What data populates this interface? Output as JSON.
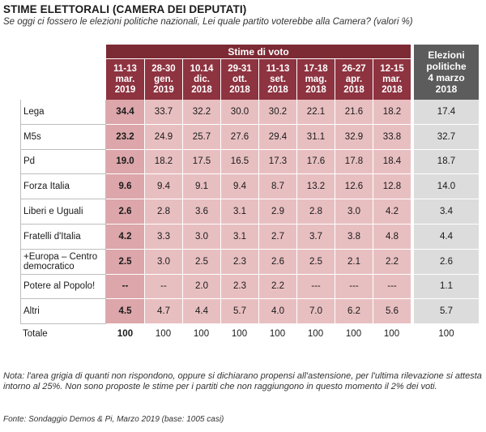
{
  "title": "STIME ELETTORALI (CAMERA DEI DEPUTATI)",
  "subtitle": "Se oggi ci fossero le elezioni politiche nazionali, Lei quale partito voterebbe alla Camera? (valori %)",
  "note": "Nota: l'area grigia di quanti non rispondono, oppure si dichiarano propensi all'astensione, per l'ultima rilevazione si attesta intorno al 25%. Non sono proposte le stime per i partiti che non raggiungono in questo momento il 2% dei voti.",
  "source": "Fonte: Sondaggio Demos & Pi, Marzo 2019 (base: 1005 casi)",
  "colors": {
    "header_red": "#8e3340",
    "cell_pink": "#e8bfc1",
    "latest_pink": "#dca6aa",
    "election_gray": "#dcdcdc",
    "header_gray": "#5c5c5c"
  },
  "chart_data": {
    "type": "table",
    "group_header": "Stime di voto",
    "election_header": [
      "Elezioni",
      "politiche",
      "4 marzo",
      "2018"
    ],
    "columns": [
      [
        "11-13",
        "mar.",
        "2019"
      ],
      [
        "28-30",
        "gen.",
        "2019"
      ],
      [
        "10.14",
        "dic.",
        "2018"
      ],
      [
        "29-31",
        "ott.",
        "2018"
      ],
      [
        "11-13",
        "set.",
        "2018"
      ],
      [
        "17-18",
        "mag.",
        "2018"
      ],
      [
        "26-27",
        "apr.",
        "2018"
      ],
      [
        "12-15",
        "mar.",
        "2018"
      ]
    ],
    "rows": [
      {
        "party": "Lega",
        "values": [
          "34.4",
          "33.7",
          "32.2",
          "30.0",
          "30.2",
          "22.1",
          "21.6",
          "18.2"
        ],
        "election": "17.4"
      },
      {
        "party": "M5s",
        "values": [
          "23.2",
          "24.9",
          "25.7",
          "27.6",
          "29.4",
          "31.1",
          "32.9",
          "33.8"
        ],
        "election": "32.7"
      },
      {
        "party": "Pd",
        "values": [
          "19.0",
          "18.2",
          "17.5",
          "16.5",
          "17.3",
          "17.6",
          "17.8",
          "18.4"
        ],
        "election": "18.7"
      },
      {
        "party": "Forza Italia",
        "values": [
          "9.6",
          "9.4",
          "9.1",
          "9.4",
          "8.7",
          "13.2",
          "12.6",
          "12.8"
        ],
        "election": "14.0"
      },
      {
        "party": "Liberi e Uguali",
        "values": [
          "2.6",
          "2.8",
          "3.6",
          "3.1",
          "2.9",
          "2.8",
          "3.0",
          "4.2"
        ],
        "election": "3.4"
      },
      {
        "party": "Fratelli d'Italia",
        "values": [
          "4.2",
          "3.3",
          "3.0",
          "3.1",
          "2.7",
          "3.7",
          "3.8",
          "4.8"
        ],
        "election": "4.4"
      },
      {
        "party": "+Europa – Centro democratico",
        "values": [
          "2.5",
          "3.0",
          "2.5",
          "2.3",
          "2.6",
          "2.5",
          "2.1",
          "2.2"
        ],
        "election": "2.6"
      },
      {
        "party": "Potere al Popolo!",
        "values": [
          "--",
          "--",
          "2.0",
          "2.3",
          "2.2",
          "---",
          "---",
          "---"
        ],
        "election": "1.1"
      },
      {
        "party": "Altri",
        "values": [
          "4.5",
          "4.7",
          "4.4",
          "5.7",
          "4.0",
          "7.0",
          "6.2",
          "5.6"
        ],
        "election": "5.7"
      }
    ],
    "total": {
      "party": "Totale",
      "values": [
        "100",
        "100",
        "100",
        "100",
        "100",
        "100",
        "100",
        "100"
      ],
      "election": "100"
    }
  }
}
